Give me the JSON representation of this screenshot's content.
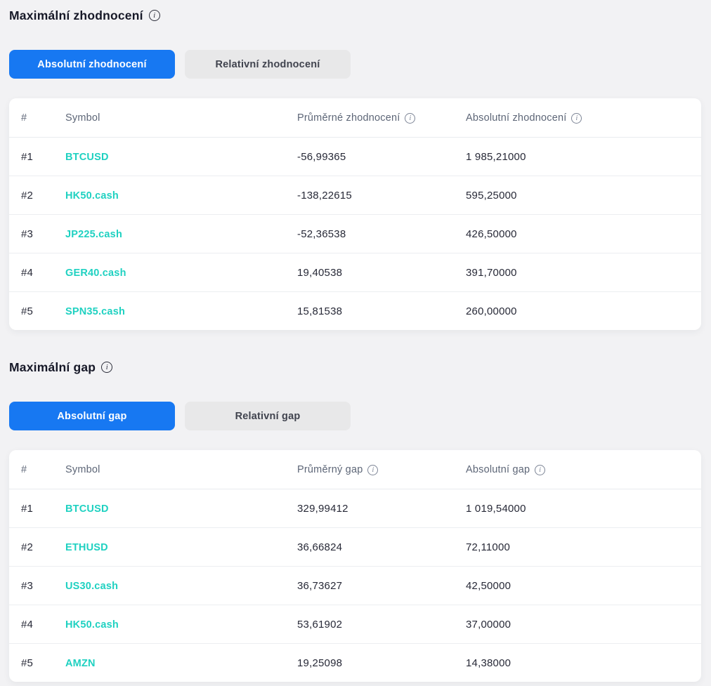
{
  "colors": {
    "accent_blue": "#1778f2",
    "symbol_teal": "#1fd1c1",
    "page_background": "#f2f2f4",
    "inactive_button_bg": "#e8e8e9"
  },
  "sections": [
    {
      "title": "Maximální zhodnocení",
      "toggle": {
        "active_label": "Absolutní zhodnocení",
        "inactive_label": "Relativní zhodnocení"
      },
      "table": {
        "col_rank": "#",
        "col_symbol": "Symbol",
        "col_avg": "Průměrné zhodnocení",
        "col_abs": "Absolutní zhodnocení",
        "rows": [
          {
            "rank": "#1",
            "symbol": "BTCUSD",
            "avg": "-56,99365",
            "abs": "1 985,21000"
          },
          {
            "rank": "#2",
            "symbol": "HK50.cash",
            "avg": "-138,22615",
            "abs": "595,25000"
          },
          {
            "rank": "#3",
            "symbol": "JP225.cash",
            "avg": "-52,36538",
            "abs": "426,50000"
          },
          {
            "rank": "#4",
            "symbol": "GER40.cash",
            "avg": "19,40538",
            "abs": "391,70000"
          },
          {
            "rank": "#5",
            "symbol": "SPN35.cash",
            "avg": "15,81538",
            "abs": "260,00000"
          }
        ]
      }
    },
    {
      "title": "Maximální gap",
      "toggle": {
        "active_label": "Absolutní gap",
        "inactive_label": "Relativní gap"
      },
      "table": {
        "col_rank": "#",
        "col_symbol": "Symbol",
        "col_avg": "Průměrný gap",
        "col_abs": "Absolutní gap",
        "rows": [
          {
            "rank": "#1",
            "symbol": "BTCUSD",
            "avg": "329,99412",
            "abs": "1 019,54000"
          },
          {
            "rank": "#2",
            "symbol": "ETHUSD",
            "avg": "36,66824",
            "abs": "72,11000"
          },
          {
            "rank": "#3",
            "symbol": "US30.cash",
            "avg": "36,73627",
            "abs": "42,50000"
          },
          {
            "rank": "#4",
            "symbol": "HK50.cash",
            "avg": "53,61902",
            "abs": "37,00000"
          },
          {
            "rank": "#5",
            "symbol": "AMZN",
            "avg": "19,25098",
            "abs": "14,38000"
          }
        ]
      }
    }
  ],
  "icons": {
    "info_glyph": "i"
  }
}
